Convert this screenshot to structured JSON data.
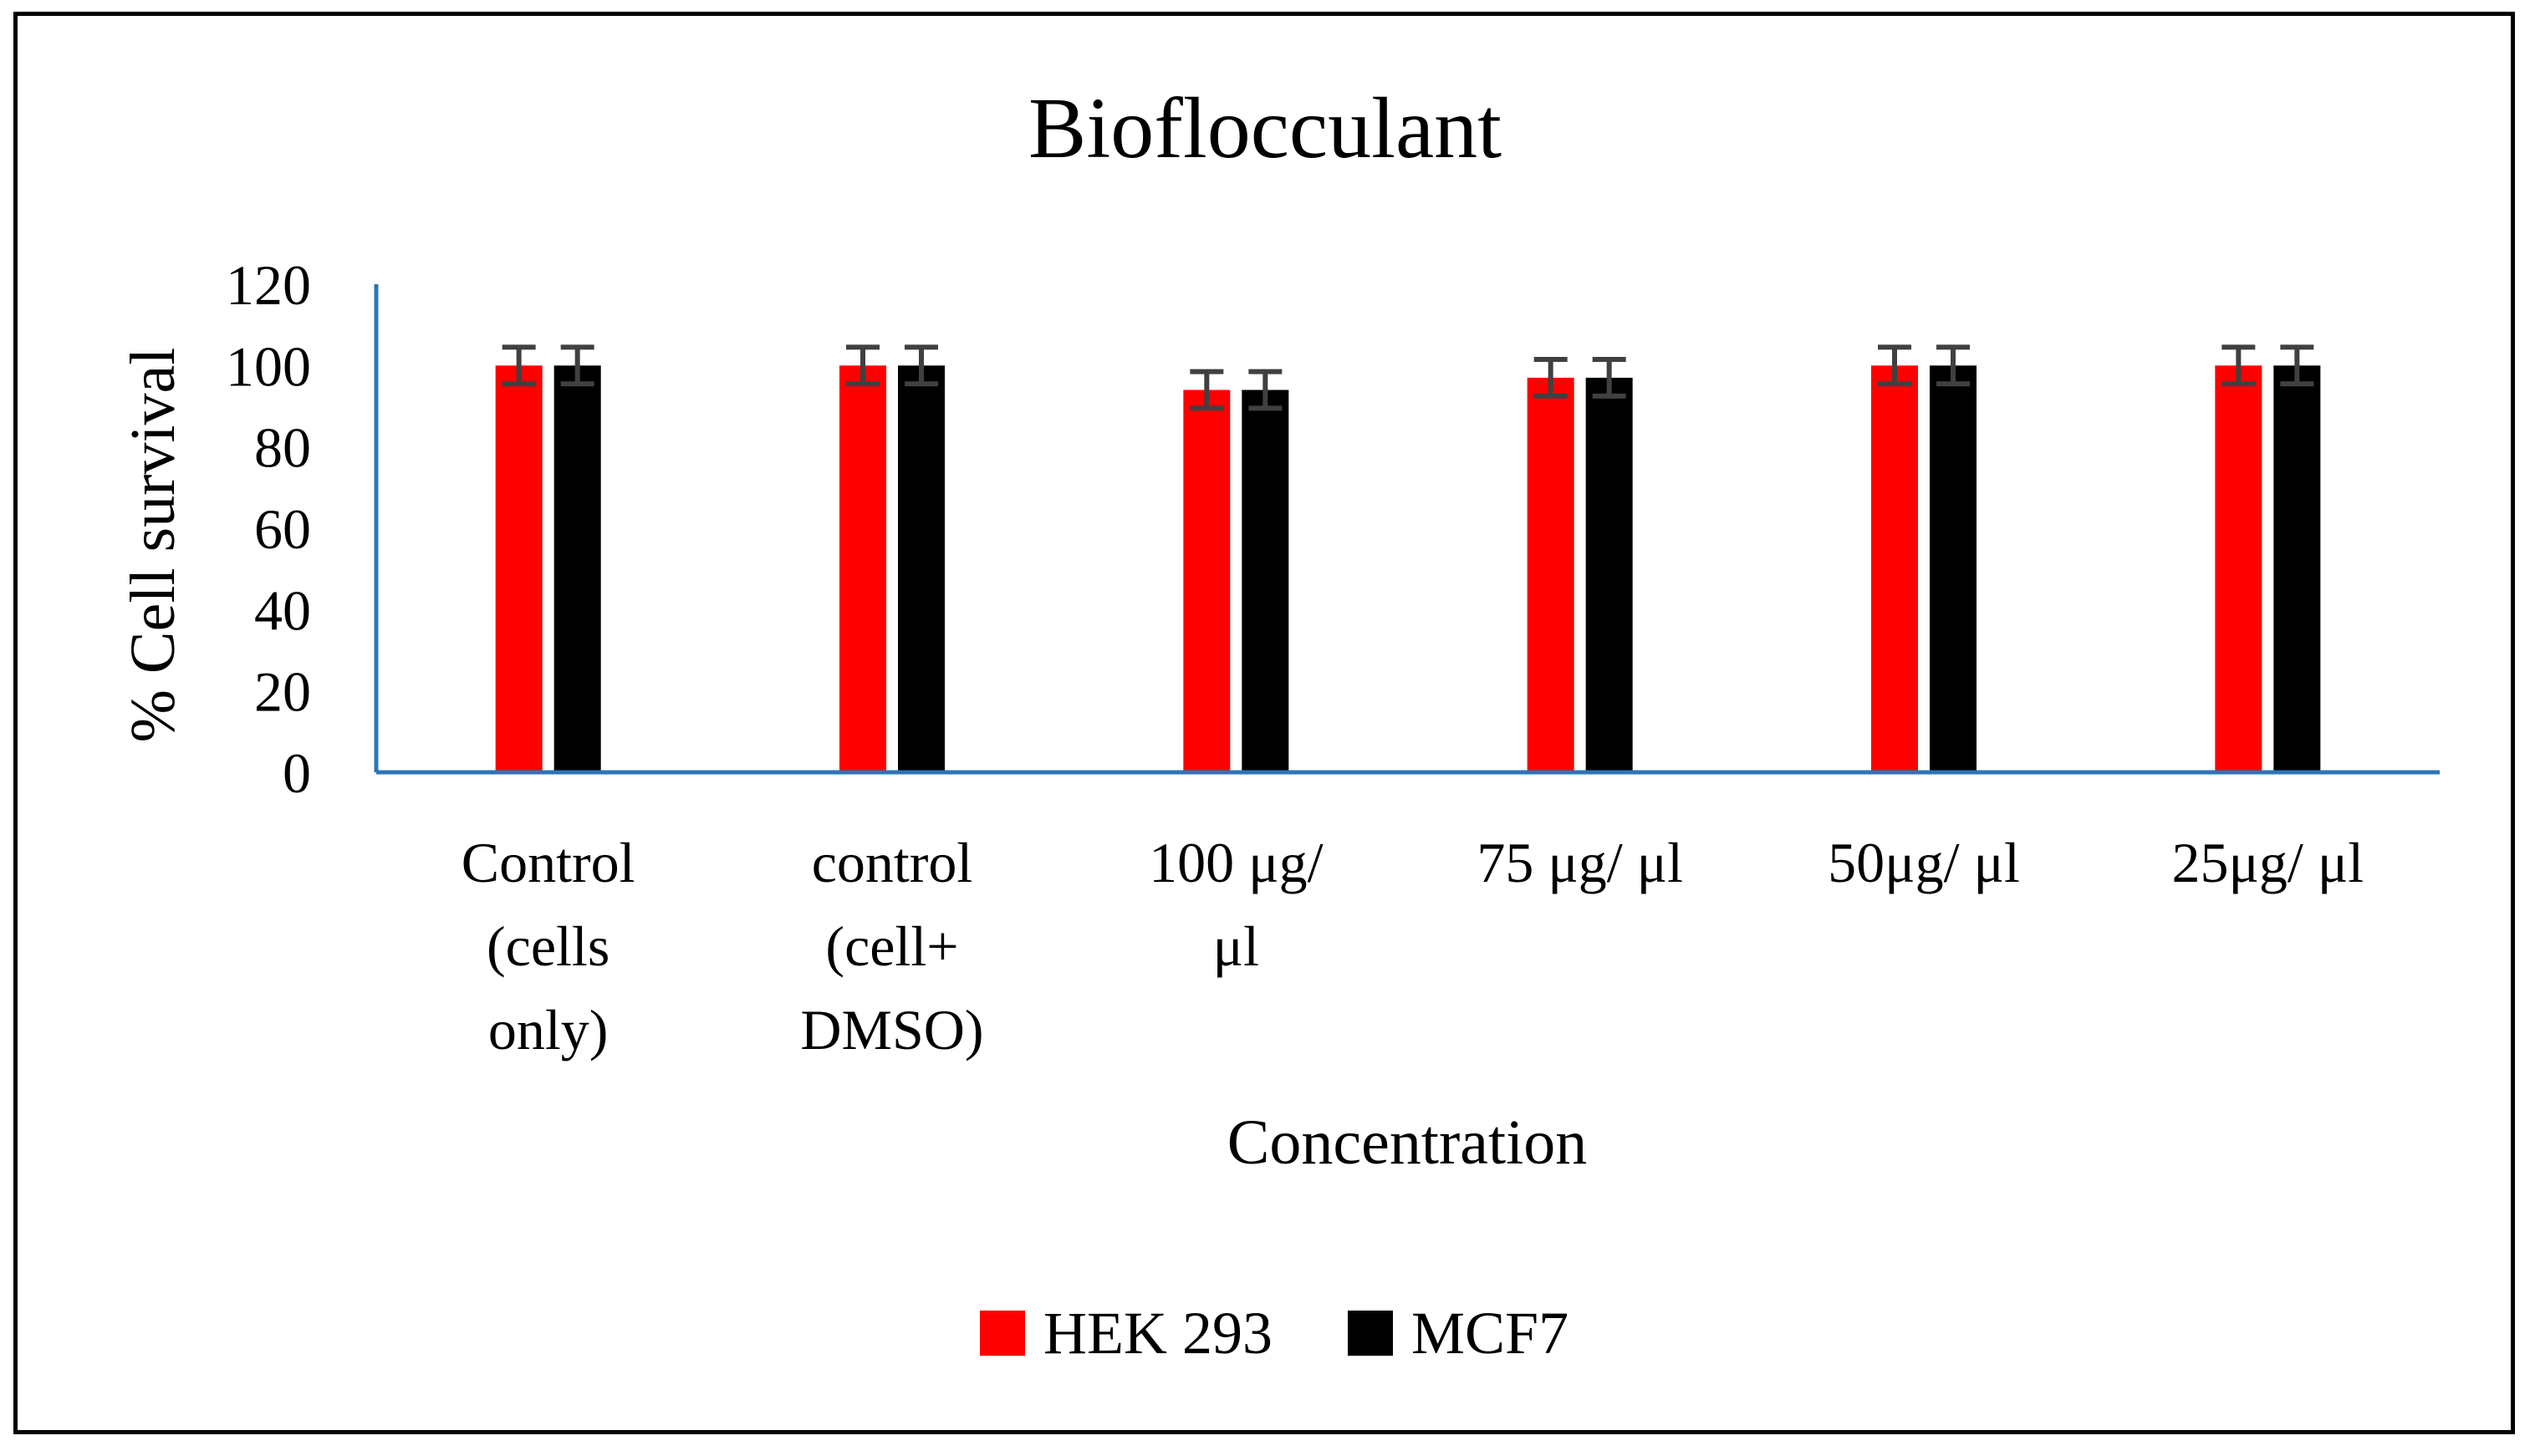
{
  "chart_data": {
    "type": "bar",
    "title": "Bioflocculant",
    "xlabel": "Concentration",
    "ylabel": "% Cell survival",
    "ylim": [
      0,
      120
    ],
    "yticks": [
      "0",
      "20",
      "40",
      "60",
      "80",
      "100",
      "120"
    ],
    "categories": [
      [
        "Control",
        "(cells",
        "only)"
      ],
      [
        "control",
        "(cell+",
        "DMSO)"
      ],
      [
        "100 μg/",
        "μl"
      ],
      [
        "75 μg/ μl"
      ],
      [
        "50μg/ μl"
      ],
      [
        "25μg/ μl"
      ]
    ],
    "series": [
      {
        "name": "HEK 293",
        "color": "#ff0000",
        "values": [
          100,
          100,
          94,
          97,
          100,
          100
        ],
        "errors": [
          4.5,
          4.5,
          4.5,
          4.5,
          4.5,
          4.5
        ]
      },
      {
        "name": "MCF7",
        "color": "#000000",
        "values": [
          100,
          100,
          94,
          97,
          100,
          100
        ],
        "errors": [
          4.5,
          4.5,
          4.5,
          4.5,
          4.5,
          4.5
        ]
      }
    ],
    "axis_color": "#2e75b6",
    "error_bar_color": "#404040",
    "grid": false,
    "legend_position": "bottom"
  }
}
